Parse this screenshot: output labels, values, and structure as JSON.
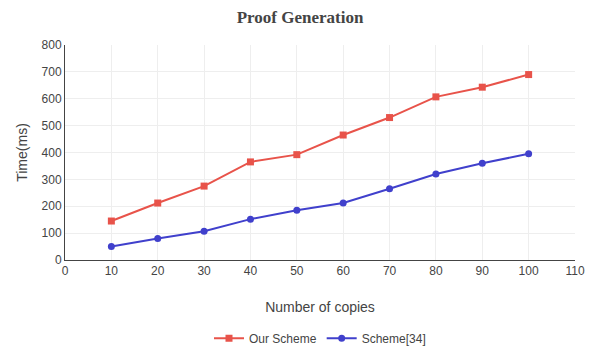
{
  "chart_data": {
    "type": "line",
    "title": "Proof Generation",
    "xlabel": "Number of copies",
    "ylabel": "Time(ms)",
    "x": [
      10,
      20,
      30,
      40,
      50,
      60,
      70,
      80,
      90,
      100
    ],
    "series": [
      {
        "name": "Our Scheme",
        "color": "#e8534a",
        "marker": "square",
        "values": [
          145,
          212,
          275,
          365,
          392,
          465,
          530,
          607,
          643,
          690
        ]
      },
      {
        "name": "Scheme[34]",
        "color": "#4040cc",
        "marker": "circle",
        "values": [
          50,
          80,
          107,
          152,
          185,
          212,
          265,
          320,
          360,
          395
        ]
      }
    ],
    "xlim": [
      0,
      110
    ],
    "ylim": [
      0,
      800
    ],
    "xticks": [
      0,
      10,
      20,
      30,
      40,
      50,
      60,
      70,
      80,
      90,
      100,
      110
    ],
    "yticks": [
      0,
      100,
      200,
      300,
      400,
      500,
      600,
      700,
      800
    ],
    "grid": true,
    "legend": "bottom"
  }
}
